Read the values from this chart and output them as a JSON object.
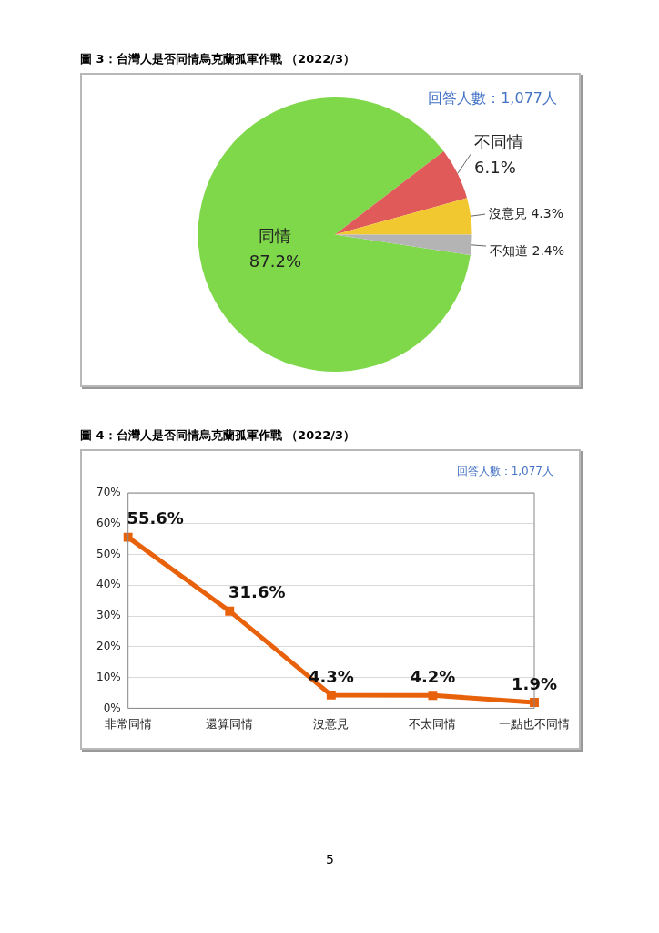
{
  "chart_data": [
    {
      "type": "pie",
      "title": "圖 3：台灣人是否同情烏克蘭孤軍作戰 （2022/3）",
      "categories": [
        "同情",
        "不同情",
        "沒意見",
        "不知道"
      ],
      "values": [
        87.2,
        6.1,
        4.3,
        2.4
      ],
      "colors": [
        "#7ed84a",
        "#e05a5a",
        "#f2c830",
        "#b4b4b4"
      ],
      "value_labels": [
        "87.2%",
        "6.1%",
        "4.3%",
        "2.4%"
      ],
      "annotations": [
        "回答人數：1,077人"
      ],
      "legend": false
    },
    {
      "type": "line",
      "title": "圖 4：台灣人是否同情烏克蘭孤軍作戰 （2022/3）",
      "categories": [
        "非常同情",
        "還算同情",
        "沒意見",
        "不太同情",
        "一點也不同情"
      ],
      "series": [
        {
          "color": "#e8620c",
          "values": [
            55.6,
            31.6,
            4.3,
            4.2,
            1.9
          ]
        }
      ],
      "value_labels": [
        "55.6%",
        "31.6%",
        "4.3%",
        "4.2%",
        "1.9%"
      ],
      "ylim": [
        0,
        70
      ],
      "yticks": [
        {
          "value": 0,
          "label": "0%"
        },
        {
          "value": 10,
          "label": "10%"
        },
        {
          "value": 20,
          "label": "20%"
        },
        {
          "value": 30,
          "label": "30%"
        },
        {
          "value": 40,
          "label": "40%"
        },
        {
          "value": 50,
          "label": "50%"
        },
        {
          "value": 60,
          "label": "60%"
        },
        {
          "value": 70,
          "label": "70%"
        }
      ],
      "grid": "y",
      "marker": "square",
      "line_style": "solid",
      "legend": false,
      "annotations": [
        "回答人數：1,077人",
        "5"
      ]
    }
  ]
}
